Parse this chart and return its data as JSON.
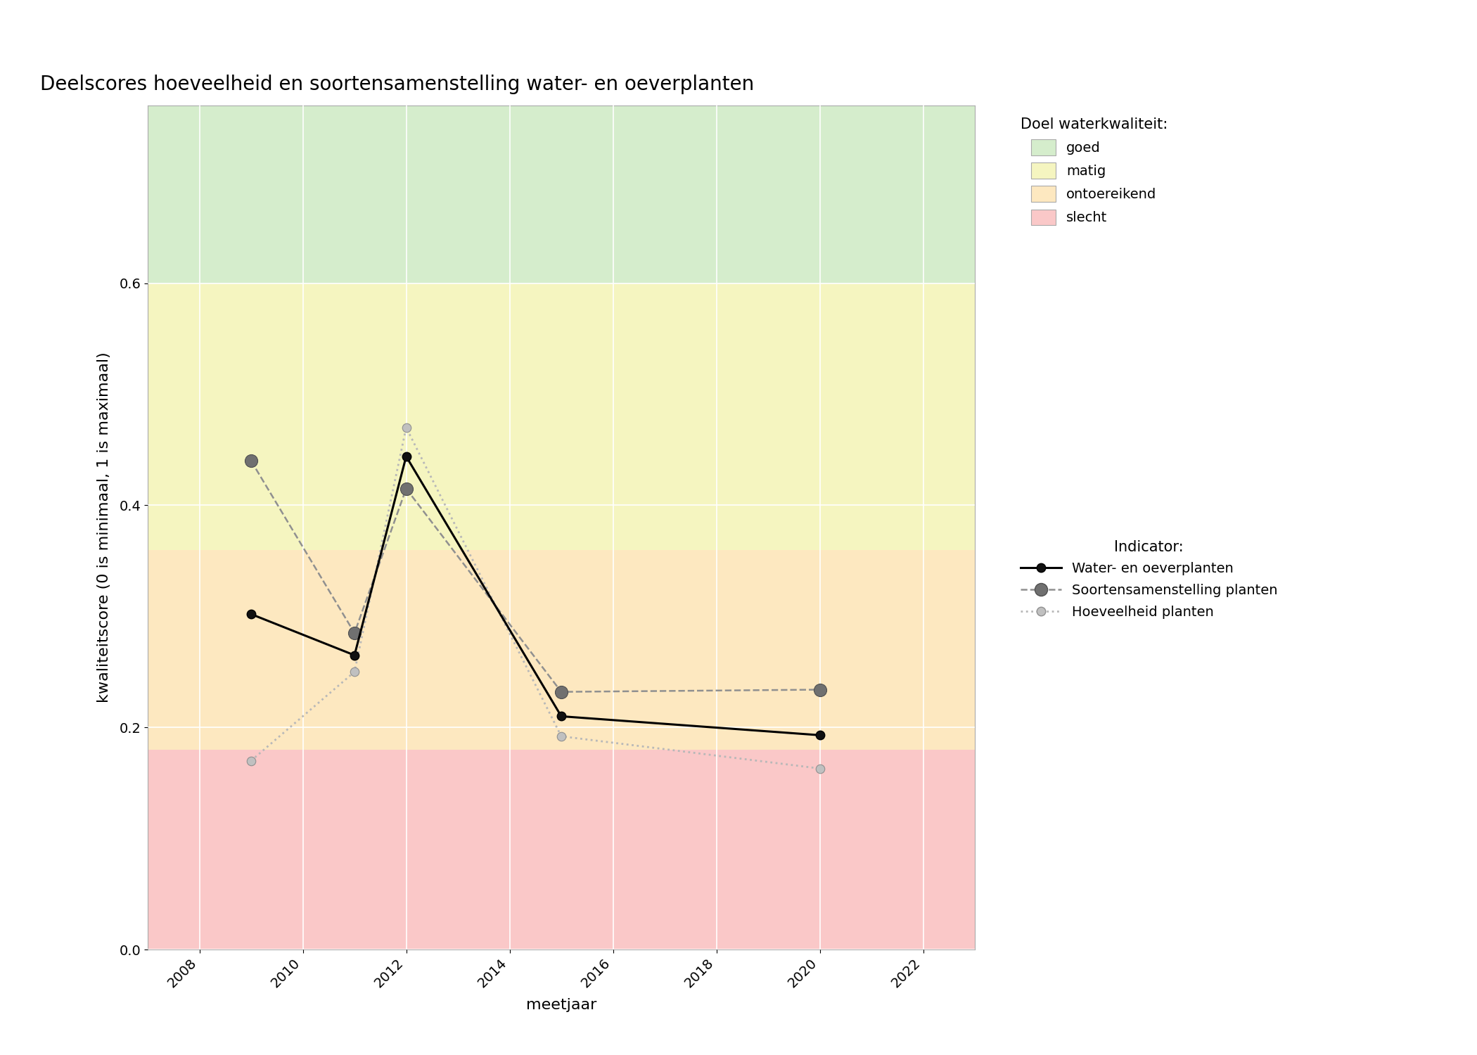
{
  "title": "Deelscores hoeveelheid en soortensamenstelling water- en oeverplanten",
  "xlabel": "meetjaar",
  "ylabel": "kwaliteitscore (0 is minimaal, 1 is maximaal)",
  "xlim": [
    2007,
    2023
  ],
  "ylim": [
    0,
    0.76
  ],
  "xticks": [
    2008,
    2010,
    2012,
    2014,
    2016,
    2018,
    2020,
    2022
  ],
  "yticks": [
    0.0,
    0.2,
    0.4,
    0.6
  ],
  "background_color": "#ffffff",
  "quality_bands": {
    "goed": {
      "ymin": 0.6,
      "ymax": 0.76,
      "color": "#d5edcc"
    },
    "matig": {
      "ymin": 0.36,
      "ymax": 0.6,
      "color": "#f5f5c0"
    },
    "ontoereikend": {
      "ymin": 0.18,
      "ymax": 0.36,
      "color": "#fde8c0"
    },
    "slecht": {
      "ymin": 0.0,
      "ymax": 0.18,
      "color": "#fac8c8"
    }
  },
  "legend_colors": {
    "goed": "#d5edcc",
    "matig": "#f5f5c0",
    "ontoereikend": "#fde8c0",
    "slecht": "#fac8c8"
  },
  "line_water_oever": {
    "x": [
      2009,
      2011,
      2012,
      2015,
      2020
    ],
    "y": [
      0.302,
      0.265,
      0.444,
      0.21,
      0.193
    ],
    "color": "#000000",
    "linestyle": "solid",
    "linewidth": 2.2,
    "markersize": 9,
    "label": "Water- en oeverplanten"
  },
  "line_soortensamenstelling": {
    "x": [
      2009,
      2011,
      2012,
      2015,
      2020
    ],
    "y": [
      0.44,
      0.285,
      0.415,
      0.232,
      0.234
    ],
    "color": "#909090",
    "linestyle": "dashed",
    "linewidth": 1.8,
    "markersize": 13,
    "label": "Soortensamenstelling planten"
  },
  "line_hoeveelheid": {
    "x": [
      2009,
      2011,
      2012,
      2015,
      2020
    ],
    "y": [
      0.17,
      0.25,
      0.47,
      0.192,
      0.163
    ],
    "color": "#b8b8b8",
    "linestyle": "dotted",
    "linewidth": 2.0,
    "markersize": 9,
    "label": "Hoeveelheid planten"
  }
}
